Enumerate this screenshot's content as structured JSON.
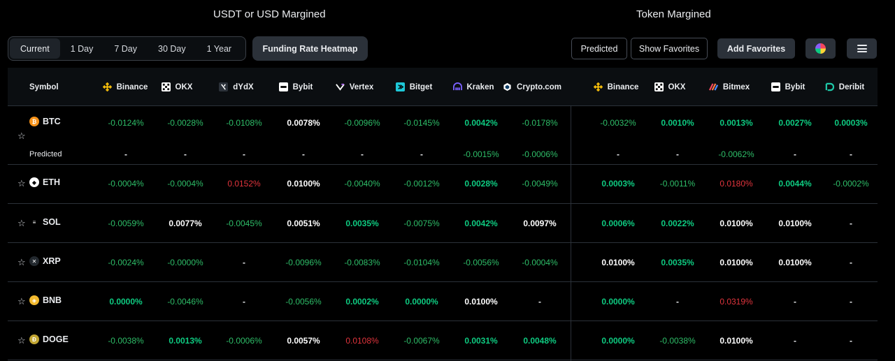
{
  "sections": {
    "left_title": "USDT or USD Margined",
    "right_title": "Token Margined"
  },
  "periods": [
    "Current",
    "1 Day",
    "7 Day",
    "30 Day",
    "1 Year"
  ],
  "toolbar": {
    "heatmap_label": "Funding Rate Heatmap",
    "predicted_label": "Predicted",
    "show_favorites_label": "Show Favorites",
    "add_favorites_label": "Add Favorites"
  },
  "header": {
    "symbol": "Symbol",
    "usdt_exchanges": [
      "Binance",
      "OKX",
      "dYdX",
      "Bybit",
      "Vertex",
      "Bitget",
      "Kraken",
      "Crypto.com"
    ],
    "token_exchanges": [
      "Binance",
      "OKX",
      "Bitmex",
      "Bybit",
      "Deribit"
    ]
  },
  "colors": {
    "positive": "#2ebd68",
    "negative": "#e0343c",
    "accent": "#fcd535"
  },
  "rows": [
    {
      "symbol": "BTC",
      "coin_color": "#f7931a",
      "coin_glyph": "₿",
      "values": [
        "-0.0124%",
        "-0.0028%",
        "-0.0108%",
        "0.0078%",
        "-0.0096%",
        "-0.0145%",
        "0.0042%",
        "-0.0178%",
        "-0.0032%",
        "0.0010%",
        "0.0013%",
        "0.0027%",
        "0.0003%"
      ],
      "styles": [
        "green",
        "green",
        "green",
        "white",
        "green",
        "green",
        "bright",
        "green",
        "green",
        "bright",
        "bright",
        "bright",
        "bright"
      ],
      "predicted_label": "Predicted",
      "predicted": [
        "-",
        "-",
        "-",
        "-",
        "-",
        "-",
        "-0.0015%",
        "-0.0006%",
        "-",
        "-",
        "-0.0062%",
        "-",
        "-"
      ],
      "predicted_styles": [
        "dash",
        "dash",
        "dash",
        "dash",
        "dash",
        "dash",
        "green",
        "green",
        "dash",
        "dash",
        "green",
        "dash",
        "dash"
      ]
    },
    {
      "symbol": "ETH",
      "coin_color": "#ffffff",
      "coin_glyph": "◆",
      "values": [
        "-0.0004%",
        "-0.0004%",
        "0.0152%",
        "0.0100%",
        "-0.0040%",
        "-0.0012%",
        "0.0028%",
        "-0.0049%",
        "0.0003%",
        "-0.0011%",
        "0.0180%",
        "0.0044%",
        "-0.0002%"
      ],
      "styles": [
        "green",
        "green",
        "red",
        "white",
        "green",
        "green",
        "bright",
        "green",
        "bright",
        "green",
        "red",
        "bright",
        "green"
      ]
    },
    {
      "symbol": "SOL",
      "coin_color": "#000000",
      "coin_glyph": "≡",
      "values": [
        "-0.0059%",
        "0.0077%",
        "-0.0045%",
        "0.0051%",
        "0.0035%",
        "-0.0075%",
        "0.0042%",
        "0.0097%",
        "0.0006%",
        "0.0022%",
        "0.0100%",
        "0.0100%",
        "-"
      ],
      "styles": [
        "green",
        "white",
        "green",
        "white",
        "bright",
        "green",
        "bright",
        "white",
        "bright",
        "bright",
        "white",
        "white",
        "dash"
      ]
    },
    {
      "symbol": "XRP",
      "coin_color": "#23292f",
      "coin_glyph": "✕",
      "values": [
        "-0.0024%",
        "-0.0000%",
        "-",
        "-0.0096%",
        "-0.0083%",
        "-0.0104%",
        "-0.0056%",
        "-0.0004%",
        "0.0100%",
        "0.0035%",
        "0.0100%",
        "0.0100%",
        "-"
      ],
      "styles": [
        "green",
        "green",
        "dash",
        "green",
        "green",
        "green",
        "green",
        "green",
        "white",
        "bright",
        "white",
        "white",
        "dash"
      ]
    },
    {
      "symbol": "BNB",
      "coin_color": "#f3ba2f",
      "coin_glyph": "◈",
      "values": [
        "0.0000%",
        "-0.0046%",
        "-",
        "-0.0056%",
        "0.0002%",
        "0.0000%",
        "0.0100%",
        "-",
        "0.0000%",
        "-",
        "0.0319%",
        "-",
        "-"
      ],
      "styles": [
        "bright",
        "green",
        "dash",
        "green",
        "bright",
        "bright",
        "white",
        "dash",
        "bright",
        "dash",
        "red",
        "dash",
        "dash"
      ]
    },
    {
      "symbol": "DOGE",
      "coin_color": "#c2a633",
      "coin_glyph": "Ð",
      "values": [
        "-0.0038%",
        "0.0013%",
        "-0.0006%",
        "0.0057%",
        "0.0108%",
        "-0.0067%",
        "0.0031%",
        "0.0048%",
        "0.0000%",
        "-0.0038%",
        "0.0100%",
        "-",
        "-"
      ],
      "styles": [
        "green",
        "bright",
        "green",
        "white",
        "red",
        "green",
        "bright",
        "bright",
        "bright",
        "green",
        "white",
        "dash",
        "dash"
      ]
    }
  ]
}
